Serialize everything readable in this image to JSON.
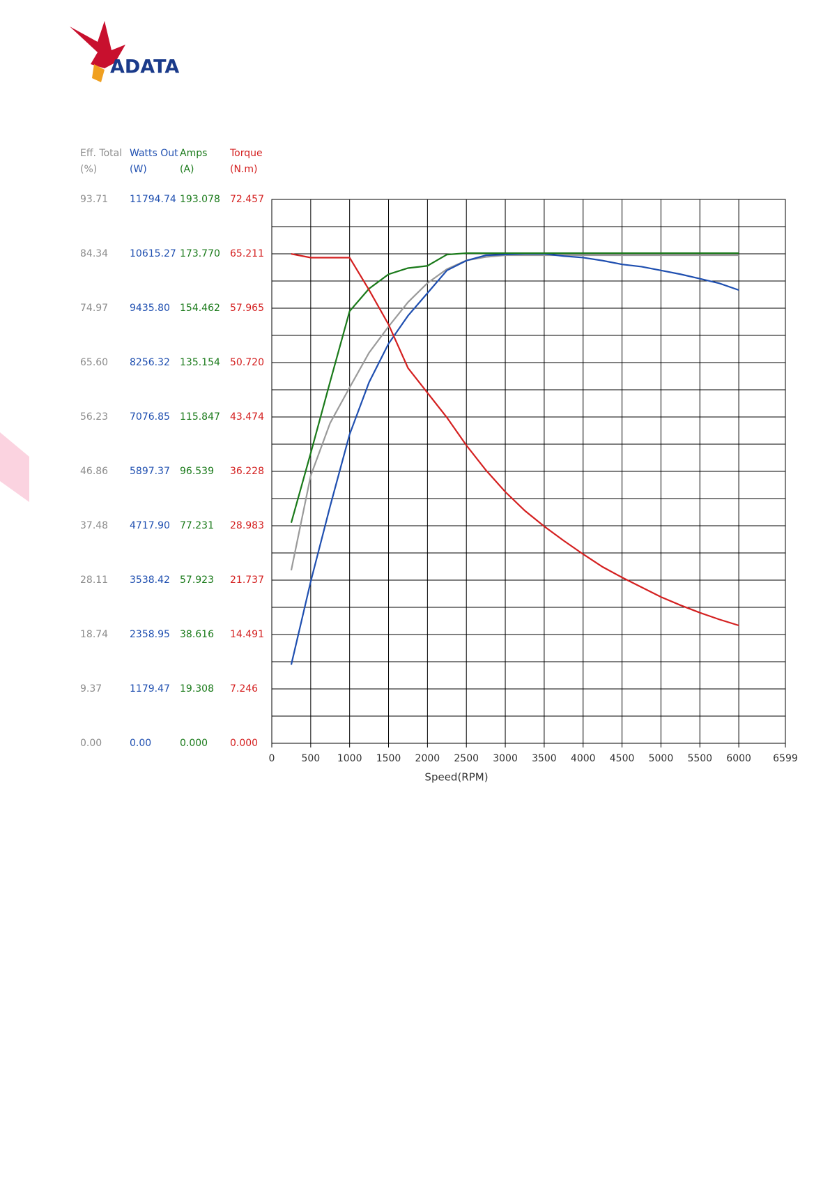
{
  "brand": "ADATA",
  "chart_data": {
    "type": "line",
    "xlabel": "Speed(RPM)",
    "xlim": [
      0,
      6599
    ],
    "xticks": [
      0,
      500,
      1000,
      1500,
      2000,
      2500,
      3000,
      3500,
      4000,
      4500,
      5000,
      5500,
      6000,
      6599
    ],
    "grid": true,
    "x": [
      250,
      500,
      750,
      1000,
      1250,
      1500,
      1750,
      2000,
      2250,
      2500,
      2750,
      3000,
      3250,
      3500,
      3750,
      4000,
      4250,
      4500,
      4750,
      5000,
      5250,
      5500,
      5750,
      6000
    ],
    "axes": [
      {
        "title": "Eff. Total",
        "unit": "(%)",
        "color": "#8c8c8c",
        "ylim": [
          0,
          93.71
        ],
        "yticks": [
          {
            "value": 0,
            "label": "0.00"
          },
          9.37,
          18.74,
          28.11,
          37.48,
          46.86,
          56.23,
          {
            "value": 65.6,
            "label": "65.60"
          },
          74.97,
          84.34,
          93.71
        ]
      },
      {
        "title": "Watts Out",
        "unit": "(W)",
        "color": "#1f4fb0",
        "ylim": [
          0,
          11794.74
        ],
        "yticks": [
          {
            "value": 0,
            "label": "0.00"
          },
          1179.47,
          2358.95,
          3538.42,
          {
            "value": 4717.9,
            "label": "4717.90"
          },
          5897.37,
          7076.85,
          8256.32,
          {
            "value": 9435.8,
            "label": "9435.80"
          },
          10615.27,
          11794.74
        ]
      },
      {
        "title": "Amps",
        "unit": "(A)",
        "color": "#1a7a1a",
        "ylim": [
          0,
          193.078
        ],
        "yticks": [
          {
            "value": 0,
            "label": "0.000"
          },
          19.308,
          38.616,
          57.923,
          77.231,
          96.539,
          115.847,
          135.154,
          154.462,
          {
            "value": 173.77,
            "label": "173.770"
          },
          193.078
        ]
      },
      {
        "title": "Torque",
        "unit": "(N.m)",
        "color": "#d42020",
        "ylim": [
          0,
          72.457
        ],
        "yticks": [
          {
            "value": 0,
            "label": "0.000"
          },
          7.246,
          14.491,
          21.737,
          28.983,
          36.228,
          43.474,
          {
            "value": 50.72,
            "label": "50.720"
          },
          57.965,
          65.211,
          72.457
        ]
      }
    ],
    "series": [
      {
        "axis": 0,
        "color": "#9a9a9a",
        "values": [
          29.8,
          46.1,
          55.2,
          61.3,
          67.3,
          71.8,
          76.0,
          79.3,
          81.7,
          83.2,
          83.8,
          84.1,
          84.1,
          84.1,
          84.1,
          84.1,
          84.1,
          84.1,
          84.1,
          84.1,
          84.1,
          84.1,
          84.1,
          84.1
        ]
      },
      {
        "axis": 1,
        "color": "#1f4fb0",
        "values": [
          1704,
          3506,
          5144,
          6700,
          7830,
          8666,
          9272,
          9763,
          10255,
          10468,
          10583,
          10599,
          10615,
          10615,
          10566,
          10533,
          10468,
          10386,
          10337,
          10255,
          10173,
          10075,
          9976,
          9829
        ]
      },
      {
        "axis": 2,
        "color": "#1a7a1a",
        "values": [
          78.3,
          103.0,
          128.4,
          153.4,
          161.4,
          166.5,
          168.7,
          169.5,
          173.5,
          174.0,
          174.0,
          174.0,
          174.0,
          174.0,
          174.0,
          174.0,
          174.0,
          174.0,
          174.0,
          174.0,
          174.0,
          174.0,
          174.0,
          174.0
        ]
      },
      {
        "axis": 3,
        "color": "#d42020",
        "values": [
          65.2,
          64.7,
          64.7,
          64.7,
          60.4,
          55.8,
          50.0,
          46.7,
          43.4,
          39.7,
          36.4,
          33.5,
          31.0,
          28.9,
          27.0,
          25.2,
          23.5,
          22.1,
          20.8,
          19.5,
          18.4,
          17.4,
          16.5,
          15.7
        ]
      }
    ]
  }
}
